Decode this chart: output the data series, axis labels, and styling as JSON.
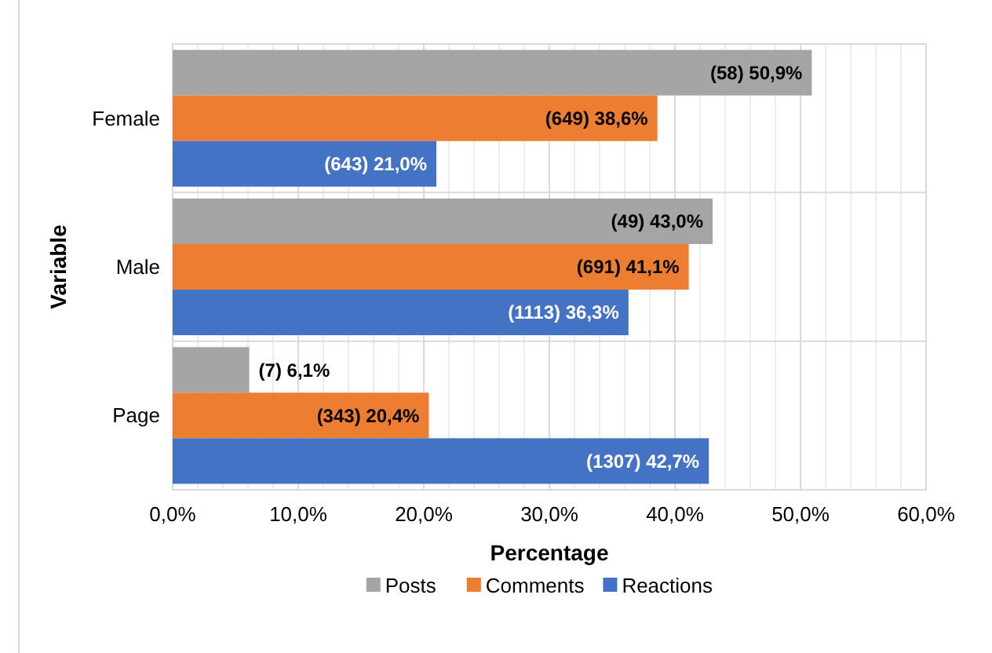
{
  "chart_data": {
    "type": "bar",
    "orientation": "horizontal",
    "xlabel": "Percentage",
    "ylabel": "Variable",
    "categories": [
      "Female",
      "Male",
      "Page"
    ],
    "series": [
      {
        "name": "Posts",
        "color": "#a5a5a5",
        "values": [
          50.9,
          43.0,
          6.1
        ],
        "value_labels": [
          "(58) 50,9%",
          "(49) 43,0%",
          "(7) 6,1%"
        ]
      },
      {
        "name": "Comments",
        "color": "#ed7d31",
        "values": [
          38.6,
          41.1,
          20.4
        ],
        "value_labels": [
          "(649) 38,6%",
          "(691) 41,1%",
          "(343) 20,4%"
        ]
      },
      {
        "name": "Reactions",
        "color": "#4472c4",
        "values": [
          21.0,
          36.3,
          42.7
        ],
        "value_labels": [
          "(643) 21,0%",
          "(1113) 36,3%",
          "(1307) 42,7%"
        ]
      }
    ],
    "xlim": [
      0,
      60
    ],
    "xticks": [
      {
        "value": 0,
        "label": "0,0%"
      },
      {
        "value": 2,
        "label": null
      },
      {
        "value": 4,
        "label": null
      },
      {
        "value": 6,
        "label": null
      },
      {
        "value": 8,
        "label": null
      },
      {
        "value": 10,
        "label": "10,0%"
      },
      {
        "value": 12,
        "label": null
      },
      {
        "value": 14,
        "label": null
      },
      {
        "value": 16,
        "label": null
      },
      {
        "value": 18,
        "label": null
      },
      {
        "value": 20,
        "label": "20,0%"
      },
      {
        "value": 22,
        "label": null
      },
      {
        "value": 24,
        "label": null
      },
      {
        "value": 26,
        "label": null
      },
      {
        "value": 28,
        "label": null
      },
      {
        "value": 30,
        "label": "30,0%"
      },
      {
        "value": 32,
        "label": null
      },
      {
        "value": 34,
        "label": null
      },
      {
        "value": 36,
        "label": null
      },
      {
        "value": 38,
        "label": null
      },
      {
        "value": 40,
        "label": "40,0%"
      },
      {
        "value": 42,
        "label": null
      },
      {
        "value": 44,
        "label": null
      },
      {
        "value": 46,
        "label": null
      },
      {
        "value": 48,
        "label": null
      },
      {
        "value": 50,
        "label": "50,0%"
      },
      {
        "value": 52,
        "label": null
      },
      {
        "value": 54,
        "label": null
      },
      {
        "value": 56,
        "label": null
      },
      {
        "value": 58,
        "label": null
      },
      {
        "value": 60,
        "label": "60,0%"
      }
    ],
    "grid": "x",
    "legend": "bottom"
  }
}
